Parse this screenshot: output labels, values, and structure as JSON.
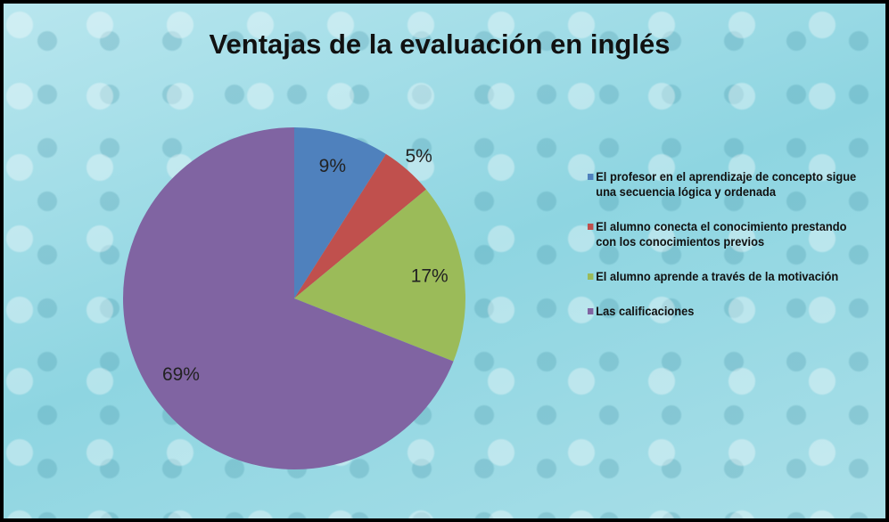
{
  "chart_data": {
    "type": "pie",
    "title": "Ventajas de la evaluación en inglés",
    "categories": [
      "El profesor en el aprendizaje de concepto sigue una secuencia lógica y ordenada",
      "El alumno conecta el conocimiento prestando con los conocimientos previos",
      "El alumno aprende a través de la motivación",
      "Las calificaciones"
    ],
    "values": [
      9,
      5,
      17,
      69
    ],
    "value_labels": [
      "9%",
      "5%",
      "17%",
      "69%"
    ],
    "colors": [
      "#4f81bd",
      "#c0504d",
      "#9bbb59",
      "#8064a2"
    ],
    "legend": "right"
  }
}
